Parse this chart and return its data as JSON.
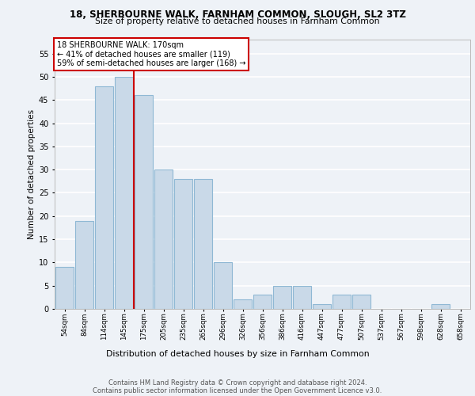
{
  "title1": "18, SHERBOURNE WALK, FARNHAM COMMON, SLOUGH, SL2 3TZ",
  "title2": "Size of property relative to detached houses in Farnham Common",
  "xlabel": "Distribution of detached houses by size in Farnham Common",
  "ylabel": "Number of detached properties",
  "bin_labels": [
    "54sqm",
    "84sqm",
    "114sqm",
    "145sqm",
    "175sqm",
    "205sqm",
    "235sqm",
    "265sqm",
    "296sqm",
    "326sqm",
    "356sqm",
    "386sqm",
    "416sqm",
    "447sqm",
    "477sqm",
    "507sqm",
    "537sqm",
    "567sqm",
    "598sqm",
    "628sqm",
    "658sqm"
  ],
  "counts": [
    9,
    19,
    48,
    50,
    46,
    30,
    28,
    28,
    10,
    2,
    3,
    5,
    5,
    1,
    3,
    3,
    0,
    0,
    0,
    1,
    0
  ],
  "bar_color": "#c9d9e8",
  "bar_edge_color": "#8fb8d4",
  "vline_x": 4,
  "vline_color": "#cc0000",
  "annotation_text": "18 SHERBOURNE WALK: 170sqm\n← 41% of detached houses are smaller (119)\n59% of semi-detached houses are larger (168) →",
  "annotation_box_color": "#ffffff",
  "annotation_box_edge": "#cc0000",
  "ylim": [
    0,
    58
  ],
  "yticks": [
    0,
    5,
    10,
    15,
    20,
    25,
    30,
    35,
    40,
    45,
    50,
    55
  ],
  "footer1": "Contains HM Land Registry data © Crown copyright and database right 2024.",
  "footer2": "Contains public sector information licensed under the Open Government Licence v3.0.",
  "bg_color": "#eef2f7",
  "grid_color": "#ffffff"
}
